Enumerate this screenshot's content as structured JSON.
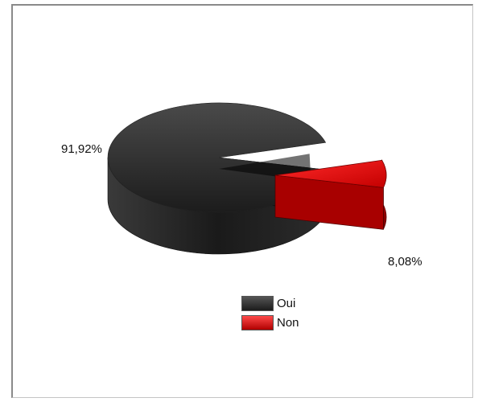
{
  "chart_data": {
    "type": "pie",
    "title": "",
    "categories": [
      "Oui",
      "Non"
    ],
    "values": [
      91.92,
      8.08
    ],
    "data_labels": [
      "91,92%",
      "8,08%"
    ],
    "colors": [
      "#2b2b2b",
      "#e00000"
    ],
    "exploded": [
      "Non"
    ],
    "style": "3d",
    "legend": {
      "position": "bottom",
      "entries": [
        "Oui",
        "Non"
      ]
    }
  }
}
